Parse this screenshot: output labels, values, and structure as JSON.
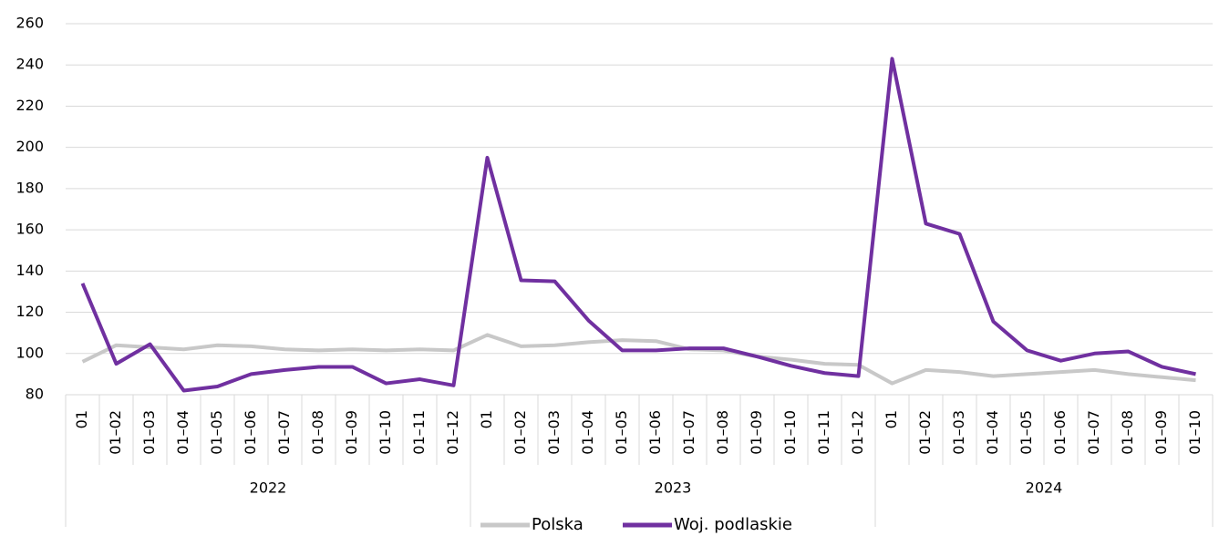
{
  "chart_data": {
    "type": "line",
    "groups": [
      {
        "name": "2022",
        "categories": [
          "01",
          "01–02",
          "01–03",
          "01–04",
          "01–05",
          "01–06",
          "01–07",
          "01–08",
          "01–09",
          "01–10",
          "01–11",
          "01–12"
        ]
      },
      {
        "name": "2023",
        "categories": [
          "01",
          "01–02",
          "01–03",
          "01–04",
          "01–05",
          "01–06",
          "01–07",
          "01–08",
          "01–09",
          "01–10",
          "01–11",
          "01–12"
        ]
      },
      {
        "name": "2024",
        "categories": [
          "01",
          "01–02",
          "01–03",
          "01–04",
          "01–05",
          "01–06",
          "01–07",
          "01–08",
          "01–09",
          "01–10"
        ]
      }
    ],
    "series": [
      {
        "name": "Polska",
        "color": "#c8c8c8",
        "values": [
          96,
          104,
          103,
          102,
          104,
          103.5,
          102,
          101.5,
          102,
          101.5,
          102,
          101.5,
          109,
          103.5,
          104,
          105.5,
          106.5,
          106,
          102,
          101.5,
          98.5,
          97,
          95,
          94.5,
          85.5,
          92,
          91,
          89,
          90,
          91,
          92,
          90,
          88.5,
          87
        ]
      },
      {
        "name": "Woj. podlaskie",
        "color": "#7030a0",
        "values": [
          134,
          95,
          104.5,
          82,
          84,
          90,
          92,
          93.5,
          93.5,
          85.5,
          87.5,
          84.5,
          195,
          135.5,
          135,
          116,
          101.5,
          101.5,
          102.5,
          102.5,
          98.5,
          94,
          90.5,
          89,
          243,
          163,
          158,
          115.5,
          101.5,
          96.5,
          100,
          101,
          93.5,
          90
        ]
      }
    ],
    "ylim": [
      80,
      260
    ],
    "yticks": [
      80,
      100,
      120,
      140,
      160,
      180,
      200,
      220,
      240,
      260
    ],
    "grid": true,
    "legend": "bottom"
  }
}
